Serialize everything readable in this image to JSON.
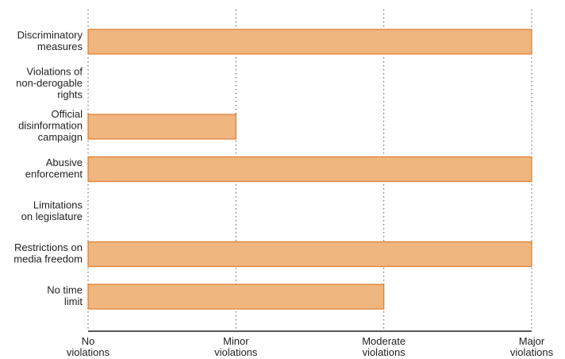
{
  "chart_data": {
    "type": "bar",
    "orientation": "horizontal",
    "title": "",
    "xlabel": "",
    "ylabel": "",
    "categories": [
      "Discriminatory measures",
      "Violations of non-derogable rights",
      "Official disinformation campaign",
      "Abusive enforcement",
      "Limitations on legislature",
      "Restrictions on media freedom",
      "No time limit"
    ],
    "category_label_lines": [
      [
        "Discriminatory",
        "measures"
      ],
      [
        "Violations of",
        "non-derogable",
        "rights"
      ],
      [
        "Official",
        "disinformation",
        "campaign"
      ],
      [
        "Abusive",
        "enforcement"
      ],
      [
        "Limitations",
        "on legislature"
      ],
      [
        "Restrictions on",
        "media freedom"
      ],
      [
        "No time",
        "limit"
      ]
    ],
    "values": [
      3,
      0,
      1,
      3,
      0,
      3,
      2
    ],
    "xlim": [
      0,
      3
    ],
    "xticks": [
      0,
      1,
      2,
      3
    ],
    "xtick_labels": [
      [
        "No",
        "violations"
      ],
      [
        "Minor",
        "violations"
      ],
      [
        "Moderate",
        "violations"
      ],
      [
        "Major",
        "violations"
      ]
    ],
    "grid": "vertical dotted",
    "legend": "none",
    "colors": {
      "bar_fill": "#f0b680",
      "bar_stroke": "#e07b2a",
      "text": "#222222",
      "axis": "#222222",
      "grid": "#555555"
    }
  }
}
